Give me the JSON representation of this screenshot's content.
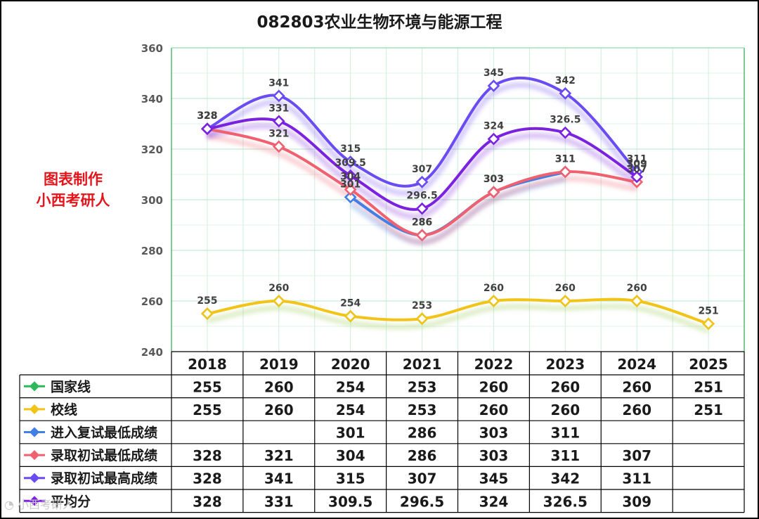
{
  "chart_data": {
    "type": "line",
    "title": "082803农业生物环境与能源工程",
    "categories": [
      "2018",
      "2019",
      "2020",
      "2021",
      "2022",
      "2023",
      "2024",
      "2025"
    ],
    "ylim": [
      240,
      360
    ],
    "yticks": [
      240,
      260,
      280,
      300,
      320,
      340,
      360
    ],
    "grid": true,
    "series": [
      {
        "name": "国家线",
        "color": "#2db85a",
        "values": [
          255,
          260,
          254,
          253,
          260,
          260,
          260,
          251
        ]
      },
      {
        "name": "校线",
        "color": "#f2c417",
        "values": [
          255,
          260,
          254,
          253,
          260,
          260,
          260,
          251
        ]
      },
      {
        "name": "进入复试最低成绩",
        "color": "#3f7fe6",
        "values": [
          null,
          null,
          301,
          286,
          303,
          311,
          null,
          null
        ]
      },
      {
        "name": "录取初试最低成绩",
        "color": "#f0606e",
        "values": [
          328,
          321,
          304,
          286,
          303,
          311,
          307,
          null
        ]
      },
      {
        "name": "录取初试最高成绩",
        "color": "#6a4cf2",
        "values": [
          328,
          341,
          315,
          307,
          345,
          342,
          311,
          null
        ]
      },
      {
        "name": "平均分",
        "color": "#7b22e0",
        "values": [
          328,
          331,
          309.5,
          296.5,
          324,
          326.5,
          309,
          null
        ]
      }
    ]
  },
  "side_note": {
    "line1": "图表制作",
    "line2": "小西考研人"
  },
  "watermark": "小西考研人"
}
